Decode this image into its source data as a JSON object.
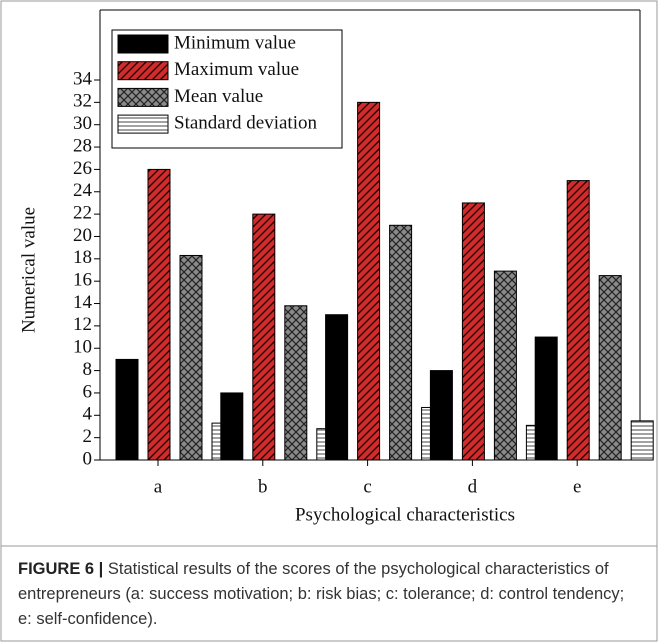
{
  "chart_data": {
    "type": "bar",
    "categories": [
      "a",
      "b",
      "c",
      "d",
      "e"
    ],
    "series": [
      {
        "name": "Minimum value",
        "color": "#000000",
        "pattern": "solid",
        "values": [
          9,
          6,
          13,
          8,
          11
        ]
      },
      {
        "name": "Maximum value",
        "color": "#d42a2a",
        "pattern": "diagonal",
        "values": [
          26,
          22,
          32,
          23,
          25
        ]
      },
      {
        "name": "Mean value",
        "color": "#8a8a8a",
        "pattern": "crosshatch",
        "values": [
          18.3,
          13.8,
          21,
          16.9,
          16.5
        ]
      },
      {
        "name": "Standard deviation",
        "color": "#ffffff",
        "pattern": "horizontal",
        "values": [
          3.3,
          2.8,
          4.7,
          3.1,
          3.5
        ]
      }
    ],
    "x_label": "Psychological characteristics",
    "y_label": "Numerical value",
    "ylim": [
      0,
      34
    ],
    "yticks": [
      0,
      2,
      4,
      6,
      8,
      10,
      12,
      14,
      16,
      18,
      20,
      22,
      24,
      26,
      28,
      30,
      32,
      34
    ],
    "legend": "upper left"
  },
  "caption": {
    "label": "FIGURE 6 |",
    "text": "Statistical results of the scores of the psychological characteristics of entrepreneurs (a: success motivation; b: risk bias; c: tolerance; d: control tendency; e: self-confidence)."
  }
}
